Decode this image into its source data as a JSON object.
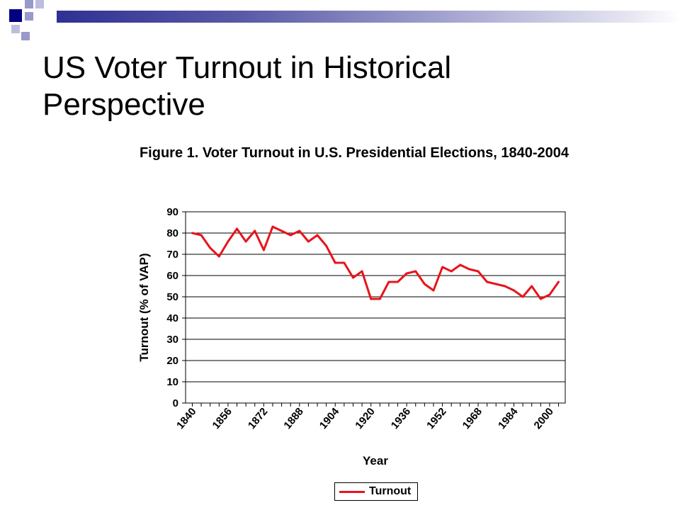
{
  "slide": {
    "title": "US Voter Turnout in Historical Perspective"
  },
  "colors": {
    "accent_dark": "#000080",
    "accent_light": "#9999cc",
    "series": "#e8141b"
  },
  "chart_data": {
    "type": "line",
    "title": "Figure 1.  Voter Turnout in U.S. Presidential Elections, 1840-2004",
    "xlabel": "Year",
    "ylabel": "Turnout (% of VAP)",
    "ylim": [
      0,
      90
    ],
    "yticks": [
      0,
      10,
      20,
      30,
      40,
      50,
      60,
      70,
      80,
      90
    ],
    "xticks": [
      "1840",
      "1856",
      "1872",
      "1888",
      "1904",
      "1920",
      "1936",
      "1952",
      "1968",
      "1984",
      "2000"
    ],
    "grid": true,
    "legend": "bottom",
    "x": [
      1840,
      1844,
      1848,
      1852,
      1856,
      1860,
      1864,
      1868,
      1872,
      1876,
      1880,
      1884,
      1888,
      1892,
      1896,
      1900,
      1904,
      1908,
      1912,
      1916,
      1920,
      1924,
      1928,
      1932,
      1936,
      1940,
      1944,
      1948,
      1952,
      1956,
      1960,
      1964,
      1968,
      1972,
      1976,
      1980,
      1984,
      1988,
      1992,
      1996,
      2000,
      2004
    ],
    "series": [
      {
        "name": "Turnout",
        "values": [
          80,
          79,
          73,
          69,
          76,
          82,
          76,
          81,
          72,
          83,
          81,
          79,
          81,
          76,
          79,
          74,
          66,
          66,
          59,
          62,
          49,
          49,
          57,
          57,
          61,
          62,
          56,
          53,
          64,
          62,
          65,
          63,
          62,
          57,
          56,
          55,
          53,
          50,
          55,
          49,
          51,
          57
        ]
      }
    ]
  }
}
